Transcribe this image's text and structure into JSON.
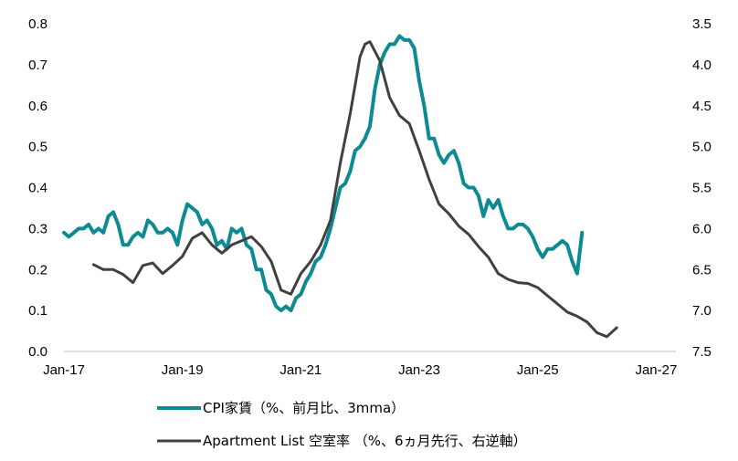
{
  "chart_data": {
    "type": "line",
    "x_axis": {
      "ticks": [
        "Jan-17",
        "Jan-19",
        "Jan-21",
        "Jan-23",
        "Jan-25",
        "Jan-27"
      ],
      "range": [
        "2017-01",
        "2027-05"
      ]
    },
    "y_left": {
      "ticks": [
        "0.0",
        "0.1",
        "0.2",
        "0.3",
        "0.4",
        "0.5",
        "0.6",
        "0.7",
        "0.8"
      ],
      "range": [
        0.0,
        0.8
      ]
    },
    "y_right": {
      "ticks": [
        "3.5",
        "4.0",
        "4.5",
        "5.0",
        "5.5",
        "6.0",
        "6.5",
        "7.0",
        "7.5"
      ],
      "range": [
        7.5,
        3.5
      ],
      "inverted": true
    },
    "legend_position": "bottom",
    "grid": false,
    "series": [
      {
        "name": "CPI家賃（%、前月比、3mma）",
        "axis": "left",
        "color": "#0e8a93",
        "points": [
          [
            "2017-01",
            0.29
          ],
          [
            "2017-02",
            0.28
          ],
          [
            "2017-03",
            0.29
          ],
          [
            "2017-04",
            0.3
          ],
          [
            "2017-05",
            0.3
          ],
          [
            "2017-06",
            0.31
          ],
          [
            "2017-07",
            0.29
          ],
          [
            "2017-08",
            0.3
          ],
          [
            "2017-09",
            0.29
          ],
          [
            "2017-10",
            0.33
          ],
          [
            "2017-11",
            0.34
          ],
          [
            "2017-12",
            0.31
          ],
          [
            "2018-01",
            0.26
          ],
          [
            "2018-02",
            0.26
          ],
          [
            "2018-03",
            0.28
          ],
          [
            "2018-04",
            0.29
          ],
          [
            "2018-05",
            0.28
          ],
          [
            "2018-06",
            0.32
          ],
          [
            "2018-07",
            0.31
          ],
          [
            "2018-08",
            0.29
          ],
          [
            "2018-09",
            0.29
          ],
          [
            "2018-10",
            0.3
          ],
          [
            "2018-11",
            0.29
          ],
          [
            "2018-12",
            0.26
          ],
          [
            "2019-01",
            0.32
          ],
          [
            "2019-02",
            0.36
          ],
          [
            "2019-03",
            0.35
          ],
          [
            "2019-04",
            0.34
          ],
          [
            "2019-05",
            0.31
          ],
          [
            "2019-06",
            0.32
          ],
          [
            "2019-07",
            0.3
          ],
          [
            "2019-08",
            0.26
          ],
          [
            "2019-09",
            0.27
          ],
          [
            "2019-10",
            0.25
          ],
          [
            "2019-11",
            0.3
          ],
          [
            "2019-12",
            0.29
          ],
          [
            "2020-01",
            0.3
          ],
          [
            "2020-02",
            0.26
          ],
          [
            "2020-03",
            0.25
          ],
          [
            "2020-04",
            0.2
          ],
          [
            "2020-05",
            0.2
          ],
          [
            "2020-06",
            0.15
          ],
          [
            "2020-07",
            0.14
          ],
          [
            "2020-08",
            0.11
          ],
          [
            "2020-09",
            0.1
          ],
          [
            "2020-10",
            0.11
          ],
          [
            "2020-11",
            0.1
          ],
          [
            "2020-12",
            0.13
          ],
          [
            "2021-01",
            0.14
          ],
          [
            "2021-02",
            0.17
          ],
          [
            "2021-03",
            0.19
          ],
          [
            "2021-04",
            0.22
          ],
          [
            "2021-05",
            0.23
          ],
          [
            "2021-06",
            0.26
          ],
          [
            "2021-07",
            0.3
          ],
          [
            "2021-08",
            0.35
          ],
          [
            "2021-09",
            0.4
          ],
          [
            "2021-10",
            0.41
          ],
          [
            "2021-11",
            0.44
          ],
          [
            "2021-12",
            0.49
          ],
          [
            "2022-01",
            0.5
          ],
          [
            "2022-02",
            0.52
          ],
          [
            "2022-03",
            0.55
          ],
          [
            "2022-04",
            0.64
          ],
          [
            "2022-05",
            0.7
          ],
          [
            "2022-06",
            0.73
          ],
          [
            "2022-07",
            0.75
          ],
          [
            "2022-08",
            0.75
          ],
          [
            "2022-09",
            0.77
          ],
          [
            "2022-10",
            0.76
          ],
          [
            "2022-11",
            0.76
          ],
          [
            "2022-12",
            0.74
          ],
          [
            "2023-01",
            0.66
          ],
          [
            "2023-02",
            0.6
          ],
          [
            "2023-03",
            0.52
          ],
          [
            "2023-04",
            0.52
          ],
          [
            "2023-05",
            0.48
          ],
          [
            "2023-06",
            0.46
          ],
          [
            "2023-07",
            0.48
          ],
          [
            "2023-08",
            0.49
          ],
          [
            "2023-09",
            0.46
          ],
          [
            "2023-10",
            0.41
          ],
          [
            "2023-11",
            0.4
          ],
          [
            "2023-12",
            0.4
          ],
          [
            "2024-01",
            0.38
          ],
          [
            "2024-02",
            0.33
          ],
          [
            "2024-03",
            0.37
          ],
          [
            "2024-04",
            0.35
          ],
          [
            "2024-05",
            0.37
          ],
          [
            "2024-06",
            0.33
          ],
          [
            "2024-07",
            0.3
          ],
          [
            "2024-08",
            0.3
          ],
          [
            "2024-09",
            0.31
          ],
          [
            "2024-10",
            0.31
          ],
          [
            "2024-11",
            0.3
          ],
          [
            "2024-12",
            0.28
          ],
          [
            "2025-01",
            0.25
          ],
          [
            "2025-02",
            0.23
          ],
          [
            "2025-03",
            0.25
          ],
          [
            "2025-04",
            0.25
          ],
          [
            "2025-05",
            0.26
          ],
          [
            "2025-06",
            0.27
          ],
          [
            "2025-07",
            0.26
          ],
          [
            "2025-08",
            0.22
          ],
          [
            "2025-09",
            0.19
          ],
          [
            "2025-10",
            0.29
          ]
        ]
      },
      {
        "name": "Apartment List 空室率 （%、6ヵ月先行、右逆軸）",
        "axis": "right",
        "color": "#404040",
        "points": [
          [
            "2017-07",
            6.44
          ],
          [
            "2017-09",
            6.5
          ],
          [
            "2017-11",
            6.5
          ],
          [
            "2018-01",
            6.56
          ],
          [
            "2018-03",
            6.66
          ],
          [
            "2018-05",
            6.45
          ],
          [
            "2018-07",
            6.42
          ],
          [
            "2018-09",
            6.55
          ],
          [
            "2018-11",
            6.45
          ],
          [
            "2019-01",
            6.34
          ],
          [
            "2019-03",
            6.12
          ],
          [
            "2019-05",
            6.05
          ],
          [
            "2019-07",
            6.2
          ],
          [
            "2019-09",
            6.3
          ],
          [
            "2019-11",
            6.2
          ],
          [
            "2020-01",
            6.15
          ],
          [
            "2020-03",
            6.1
          ],
          [
            "2020-05",
            6.22
          ],
          [
            "2020-07",
            6.4
          ],
          [
            "2020-09",
            6.75
          ],
          [
            "2020-11",
            6.8
          ],
          [
            "2021-01",
            6.55
          ],
          [
            "2021-03",
            6.4
          ],
          [
            "2021-05",
            6.2
          ],
          [
            "2021-07",
            5.9
          ],
          [
            "2021-09",
            5.2
          ],
          [
            "2021-11",
            4.6
          ],
          [
            "2022-01",
            3.9
          ],
          [
            "2022-02",
            3.75
          ],
          [
            "2022-03",
            3.72
          ],
          [
            "2022-05",
            3.95
          ],
          [
            "2022-07",
            4.4
          ],
          [
            "2022-09",
            4.62
          ],
          [
            "2022-11",
            4.72
          ],
          [
            "2023-01",
            5.05
          ],
          [
            "2023-03",
            5.4
          ],
          [
            "2023-05",
            5.7
          ],
          [
            "2023-07",
            5.82
          ],
          [
            "2023-09",
            5.97
          ],
          [
            "2023-11",
            6.07
          ],
          [
            "2024-01",
            6.22
          ],
          [
            "2024-03",
            6.35
          ],
          [
            "2024-05",
            6.55
          ],
          [
            "2024-07",
            6.62
          ],
          [
            "2024-09",
            6.66
          ],
          [
            "2024-11",
            6.67
          ],
          [
            "2025-01",
            6.72
          ],
          [
            "2025-03",
            6.82
          ],
          [
            "2025-05",
            6.92
          ],
          [
            "2025-07",
            7.02
          ],
          [
            "2025-09",
            7.07
          ],
          [
            "2025-11",
            7.14
          ],
          [
            "2026-01",
            7.27
          ],
          [
            "2026-03",
            7.32
          ],
          [
            "2026-05",
            7.21
          ]
        ]
      }
    ]
  }
}
